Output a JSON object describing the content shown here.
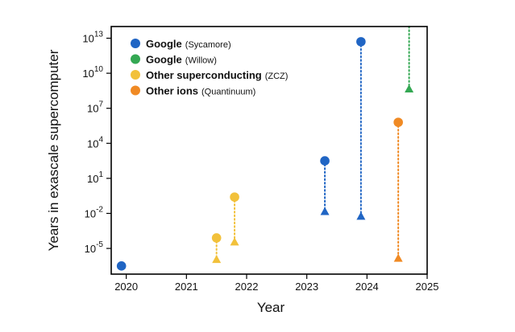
{
  "chart_data": {
    "type": "scatter",
    "title": "",
    "xlabel": "Year",
    "ylabel": "Years in exascale supercomputer",
    "xlim": [
      2019.75,
      2025.0
    ],
    "ylim_log10": [
      -7.2,
      14.0
    ],
    "x_ticks": [
      {
        "value": 2020,
        "label": "2020"
      },
      {
        "value": 2021,
        "label": "2021"
      },
      {
        "value": 2022,
        "label": "2022"
      },
      {
        "value": 2023,
        "label": "2023"
      },
      {
        "value": 2024,
        "label": "2024"
      },
      {
        "value": 2025,
        "label": "2025"
      }
    ],
    "y_ticks": [
      {
        "exp": 13,
        "base": "10",
        "sup": "13"
      },
      {
        "exp": 10,
        "base": "10",
        "sup": "10"
      },
      {
        "exp": 7,
        "base": "10",
        "sup": "7"
      },
      {
        "exp": 4,
        "base": "10",
        "sup": "4"
      },
      {
        "exp": 1,
        "base": "10",
        "sup": "1"
      },
      {
        "exp": -2,
        "base": "10",
        "sup": "-2"
      },
      {
        "exp": -5,
        "base": "10",
        "sup": "-5"
      }
    ],
    "legend_position": "top-left",
    "series": [
      {
        "key": "google-sycamore",
        "name": "Google",
        "detail": "(Sycamore)",
        "color": "#2065c4",
        "points": [
          {
            "x": 2019.92,
            "circle_log10": -6.5
          },
          {
            "x": 2023.3,
            "circle_log10": 2.5,
            "triangle_log10": -1.8
          },
          {
            "x": 2023.9,
            "circle_log10": 12.7,
            "triangle_log10": -2.2
          }
        ]
      },
      {
        "key": "google-willow",
        "name": "Google",
        "detail": "(Willow)",
        "color": "#34a853",
        "points": [
          {
            "x": 2024.7,
            "triangle_log10": 8.7,
            "line_to_top": true
          }
        ]
      },
      {
        "key": "other-superconducting",
        "name": "Other superconducting",
        "detail": "(ZCZ)",
        "color": "#f2c13b",
        "points": [
          {
            "x": 2021.5,
            "circle_log10": -4.1,
            "triangle_log10": -5.9
          },
          {
            "x": 2021.8,
            "circle_log10": -0.6,
            "triangle_log10": -4.4
          }
        ]
      },
      {
        "key": "other-ions",
        "name": "Other ions",
        "detail": "(Quantinuum)",
        "color": "#f08a24",
        "points": [
          {
            "x": 2024.52,
            "circle_log10": 5.8,
            "triangle_log10": -5.8
          }
        ]
      }
    ]
  }
}
